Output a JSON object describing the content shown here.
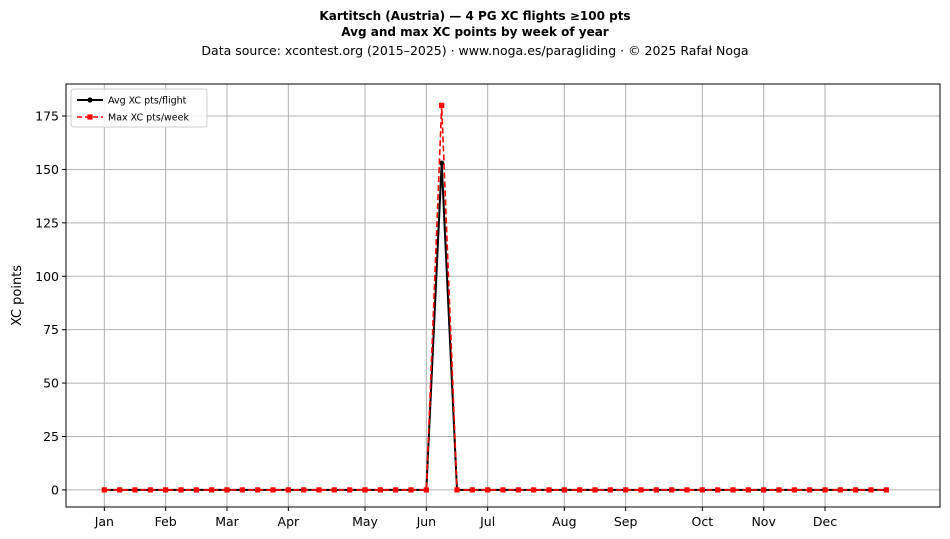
{
  "header": {
    "title_line1": "Kartitsch (Austria)  —  4 PG XC flights ≥100 pts",
    "title_line2": "Avg and max XC points by week of year",
    "subtitle": "Data source: xcontest.org (2015–2025)  ·  www.noga.es/paragliding  ·  © 2025 Rafał Noga"
  },
  "chart_data": {
    "type": "line",
    "ylabel": "XC points",
    "xlabel": "",
    "ylim": [
      -8,
      190
    ],
    "xlim": [
      -2.5,
      54.5
    ],
    "grid": true,
    "legend_position": "top-left",
    "y_ticks": [
      0,
      25,
      50,
      75,
      100,
      125,
      150,
      175
    ],
    "x_ticks": [
      {
        "week": 0,
        "label": "Jan"
      },
      {
        "week": 4,
        "label": "Feb"
      },
      {
        "week": 8,
        "label": "Mar"
      },
      {
        "week": 12,
        "label": "Apr"
      },
      {
        "week": 17,
        "label": "May"
      },
      {
        "week": 21,
        "label": "Jun"
      },
      {
        "week": 25,
        "label": "Jul"
      },
      {
        "week": 30,
        "label": "Aug"
      },
      {
        "week": 34,
        "label": "Sep"
      },
      {
        "week": 39,
        "label": "Oct"
      },
      {
        "week": 43,
        "label": "Nov"
      },
      {
        "week": 47,
        "label": "Dec"
      }
    ],
    "series": [
      {
        "name": "Avg XC pts/flight",
        "color": "#000000",
        "style": "solid",
        "marker": "circle",
        "values": [
          0,
          0,
          0,
          0,
          0,
          0,
          0,
          0,
          0,
          0,
          0,
          0,
          0,
          0,
          0,
          0,
          0,
          0,
          0,
          0,
          0,
          0,
          153,
          0,
          0,
          0,
          0,
          0,
          0,
          0,
          0,
          0,
          0,
          0,
          0,
          0,
          0,
          0,
          0,
          0,
          0,
          0,
          0,
          0,
          0,
          0,
          0,
          0,
          0,
          0,
          0,
          0
        ]
      },
      {
        "name": "Max XC pts/week",
        "color": "#ff0000",
        "style": "dashed",
        "marker": "square",
        "values": [
          0,
          0,
          0,
          0,
          0,
          0,
          0,
          0,
          0,
          0,
          0,
          0,
          0,
          0,
          0,
          0,
          0,
          0,
          0,
          0,
          0,
          0,
          180,
          0,
          0,
          0,
          0,
          0,
          0,
          0,
          0,
          0,
          0,
          0,
          0,
          0,
          0,
          0,
          0,
          0,
          0,
          0,
          0,
          0,
          0,
          0,
          0,
          0,
          0,
          0,
          0,
          0
        ]
      }
    ]
  }
}
